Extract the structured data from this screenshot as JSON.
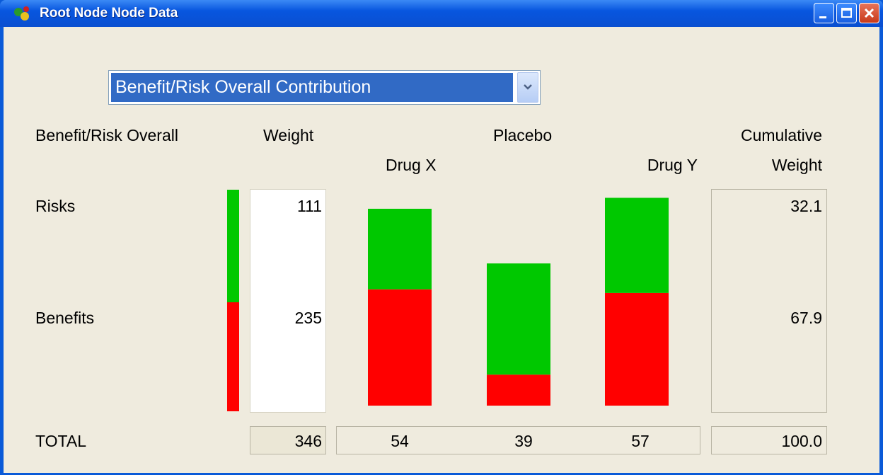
{
  "window": {
    "title": "Root Node Node Data"
  },
  "dropdown": {
    "selected": "Benefit/Risk Overall Contribution"
  },
  "headers": {
    "criterion": "Benefit/Risk Overall",
    "weight": "Weight",
    "cumulative": [
      "Cumulative",
      "Weight"
    ]
  },
  "rows": [
    {
      "label": "Risks",
      "weight": 111,
      "cumulative": 32.1
    },
    {
      "label": "Benefits",
      "weight": 235,
      "cumulative": 67.9
    }
  ],
  "total": {
    "label": "TOTAL",
    "weight": 346,
    "cumulative": "100.0"
  },
  "chart_data": {
    "type": "bar",
    "stacked": true,
    "categories": [
      "Drug X",
      "Placebo",
      "Drug Y"
    ],
    "series": [
      {
        "color": "#ff0000",
        "values": [
          31.9,
          8.5,
          30.9
        ]
      },
      {
        "color": "#00c800",
        "values": [
          22.1,
          30.5,
          26.1
        ]
      }
    ],
    "totals": [
      54,
      39,
      57
    ]
  }
}
